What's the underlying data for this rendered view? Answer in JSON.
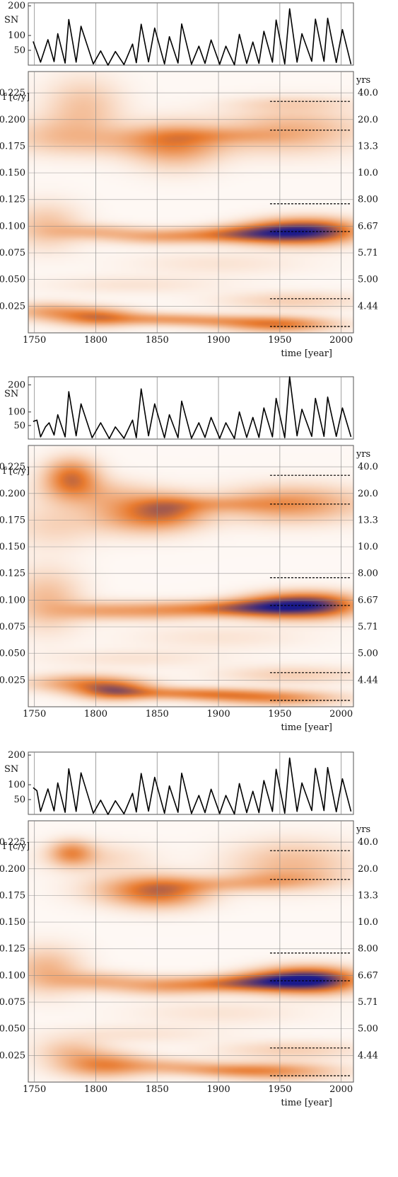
{
  "colors": {
    "low": "#ffffff",
    "mid": "#e87a2e",
    "high": "#1a1a8c",
    "line": "#000000",
    "grid": "#888888"
  },
  "labels": {
    "sn_axis": "SN",
    "freq_axis": "f [c/y]",
    "period_unit": "yrs",
    "time_axis": "time [year]"
  },
  "chart_data": [
    {
      "type": "heatmap",
      "panel": 1,
      "x_ticks": [
        1750,
        1800,
        1850,
        1900,
        1950,
        2000
      ],
      "xlim": [
        1745,
        2010
      ],
      "sn_ticks": [
        50,
        100,
        200
      ],
      "sn_lim": [
        0,
        210
      ],
      "sn_series": [
        [
          1749,
          80
        ],
        [
          1752,
          45
        ],
        [
          1755,
          10
        ],
        [
          1761,
          86
        ],
        [
          1766,
          12
        ],
        [
          1769,
          106
        ],
        [
          1775,
          7
        ],
        [
          1778,
          154
        ],
        [
          1784,
          10
        ],
        [
          1788,
          131
        ],
        [
          1798,
          4
        ],
        [
          1804,
          48
        ],
        [
          1810,
          0
        ],
        [
          1816,
          46
        ],
        [
          1823,
          2
        ],
        [
          1830,
          71
        ],
        [
          1833,
          8
        ],
        [
          1837,
          138
        ],
        [
          1843,
          11
        ],
        [
          1848,
          125
        ],
        [
          1856,
          4
        ],
        [
          1860,
          96
        ],
        [
          1867,
          7
        ],
        [
          1870,
          139
        ],
        [
          1878,
          3
        ],
        [
          1884,
          64
        ],
        [
          1889,
          6
        ],
        [
          1894,
          85
        ],
        [
          1901,
          3
        ],
        [
          1906,
          64
        ],
        [
          1913,
          1
        ],
        [
          1917,
          104
        ],
        [
          1923,
          6
        ],
        [
          1928,
          78
        ],
        [
          1933,
          6
        ],
        [
          1937,
          114
        ],
        [
          1944,
          10
        ],
        [
          1947,
          152
        ],
        [
          1954,
          4
        ],
        [
          1958,
          190
        ],
        [
          1964,
          10
        ],
        [
          1968,
          106
        ],
        [
          1976,
          13
        ],
        [
          1979,
          155
        ],
        [
          1986,
          13
        ],
        [
          1989,
          158
        ],
        [
          1996,
          9
        ],
        [
          2001,
          120
        ],
        [
          2008,
          3
        ]
      ],
      "f_ticks": [
        0.025,
        0.05,
        0.075,
        0.1,
        0.125,
        0.15,
        0.175,
        0.2,
        0.225
      ],
      "f_lim": [
        0,
        0.245
      ],
      "period_ticks": [
        "4.44",
        "5.00",
        "5.71",
        "6.67",
        "8.00",
        "10.0",
        "13.3",
        "20.0",
        "40.0"
      ],
      "dashed_f": [
        0.217,
        0.19,
        0.121,
        0.095,
        0.032,
        0.006
      ],
      "blobs": [
        [
          1790,
          0.21,
          22,
          0.02,
          0.4
        ],
        [
          1760,
          0.185,
          25,
          0.012,
          0.25
        ],
        [
          1840,
          0.18,
          50,
          0.01,
          0.4
        ],
        [
          1865,
          0.175,
          25,
          0.015,
          0.55
        ],
        [
          1900,
          0.185,
          40,
          0.005,
          0.3
        ],
        [
          1960,
          0.19,
          40,
          0.015,
          0.5
        ],
        [
          1960,
          0.215,
          35,
          0.005,
          0.2
        ],
        [
          1760,
          0.1,
          20,
          0.015,
          0.4
        ],
        [
          1800,
          0.095,
          25,
          0.005,
          0.4
        ],
        [
          1850,
          0.09,
          30,
          0.005,
          0.5
        ],
        [
          1900,
          0.092,
          30,
          0.005,
          0.55
        ],
        [
          1930,
          0.093,
          25,
          0.006,
          0.7
        ],
        [
          1960,
          0.095,
          25,
          0.008,
          1.35
        ],
        [
          1990,
          0.095,
          20,
          0.008,
          0.8
        ],
        [
          1760,
          0.02,
          22,
          0.006,
          0.55
        ],
        [
          1800,
          0.015,
          22,
          0.006,
          0.9
        ],
        [
          1850,
          0.013,
          30,
          0.004,
          0.55
        ],
        [
          1900,
          0.011,
          30,
          0.004,
          0.45
        ],
        [
          1950,
          0.008,
          30,
          0.005,
          0.9
        ],
        [
          1960,
          0.03,
          40,
          0.006,
          0.3
        ],
        [
          1830,
          0.045,
          50,
          0.006,
          0.15
        ],
        [
          1900,
          0.065,
          50,
          0.008,
          0.15
        ]
      ]
    },
    {
      "type": "heatmap",
      "panel": 2,
      "x_ticks": [
        1750,
        1800,
        1850,
        1900,
        1950,
        2000
      ],
      "xlim": [
        1745,
        2010
      ],
      "sn_ticks": [
        50,
        100,
        200
      ],
      "sn_lim": [
        0,
        230
      ],
      "sn_series": [
        [
          1749,
          65
        ],
        [
          1752,
          70
        ],
        [
          1755,
          8
        ],
        [
          1759,
          45
        ],
        [
          1762,
          60
        ],
        [
          1766,
          15
        ],
        [
          1769,
          90
        ],
        [
          1775,
          8
        ],
        [
          1778,
          175
        ],
        [
          1784,
          12
        ],
        [
          1788,
          130
        ],
        [
          1797,
          5
        ],
        [
          1804,
          60
        ],
        [
          1811,
          2
        ],
        [
          1816,
          45
        ],
        [
          1823,
          3
        ],
        [
          1830,
          70
        ],
        [
          1833,
          5
        ],
        [
          1837,
          185
        ],
        [
          1843,
          12
        ],
        [
          1848,
          130
        ],
        [
          1856,
          5
        ],
        [
          1860,
          90
        ],
        [
          1867,
          5
        ],
        [
          1870,
          140
        ],
        [
          1878,
          3
        ],
        [
          1884,
          60
        ],
        [
          1889,
          6
        ],
        [
          1894,
          80
        ],
        [
          1901,
          3
        ],
        [
          1906,
          60
        ],
        [
          1913,
          2
        ],
        [
          1917,
          100
        ],
        [
          1923,
          6
        ],
        [
          1928,
          80
        ],
        [
          1933,
          6
        ],
        [
          1937,
          115
        ],
        [
          1944,
          8
        ],
        [
          1947,
          150
        ],
        [
          1954,
          5
        ],
        [
          1958,
          230
        ],
        [
          1964,
          12
        ],
        [
          1968,
          110
        ],
        [
          1976,
          10
        ],
        [
          1979,
          150
        ],
        [
          1986,
          10
        ],
        [
          1989,
          155
        ],
        [
          1996,
          10
        ],
        [
          2001,
          115
        ],
        [
          2008,
          8
        ]
      ],
      "f_ticks": [
        0.025,
        0.05,
        0.075,
        0.1,
        0.125,
        0.15,
        0.175,
        0.2,
        0.225
      ],
      "f_lim": [
        0,
        0.245
      ],
      "period_ticks": [
        "4.44",
        "5.00",
        "5.71",
        "6.67",
        "8.00",
        "10.0",
        "13.3",
        "20.0",
        "40.0"
      ],
      "dashed_f": [
        0.217,
        0.19,
        0.121,
        0.095,
        0.032,
        0.006
      ],
      "blobs": [
        [
          1780,
          0.215,
          15,
          0.012,
          1.0
        ],
        [
          1800,
          0.2,
          30,
          0.01,
          0.35
        ],
        [
          1840,
          0.18,
          30,
          0.012,
          0.8
        ],
        [
          1860,
          0.185,
          20,
          0.01,
          0.5
        ],
        [
          1900,
          0.19,
          40,
          0.005,
          0.35
        ],
        [
          1960,
          0.19,
          40,
          0.012,
          0.7
        ],
        [
          1765,
          0.17,
          25,
          0.015,
          0.25
        ],
        [
          1760,
          0.1,
          20,
          0.02,
          0.45
        ],
        [
          1800,
          0.09,
          25,
          0.006,
          0.45
        ],
        [
          1850,
          0.09,
          30,
          0.006,
          0.55
        ],
        [
          1900,
          0.092,
          30,
          0.005,
          0.6
        ],
        [
          1930,
          0.093,
          25,
          0.006,
          0.7
        ],
        [
          1960,
          0.095,
          25,
          0.008,
          1.4
        ],
        [
          1990,
          0.095,
          20,
          0.008,
          0.8
        ],
        [
          1790,
          0.022,
          30,
          0.006,
          0.7
        ],
        [
          1815,
          0.015,
          20,
          0.006,
          0.95
        ],
        [
          1860,
          0.013,
          35,
          0.004,
          0.6
        ],
        [
          1905,
          0.011,
          30,
          0.004,
          0.5
        ],
        [
          1950,
          0.008,
          35,
          0.005,
          0.7
        ],
        [
          1960,
          0.03,
          40,
          0.006,
          0.3
        ],
        [
          1830,
          0.045,
          50,
          0.006,
          0.15
        ],
        [
          1900,
          0.065,
          50,
          0.008,
          0.15
        ]
      ]
    },
    {
      "type": "heatmap",
      "panel": 3,
      "x_ticks": [
        1750,
        1800,
        1850,
        1900,
        1950,
        2000
      ],
      "xlim": [
        1745,
        2010
      ],
      "sn_ticks": [
        50,
        100,
        200
      ],
      "sn_lim": [
        0,
        210
      ],
      "sn_series": [
        [
          1749,
          90
        ],
        [
          1752,
          80
        ],
        [
          1755,
          10
        ],
        [
          1761,
          86
        ],
        [
          1766,
          12
        ],
        [
          1769,
          106
        ],
        [
          1775,
          7
        ],
        [
          1778,
          154
        ],
        [
          1784,
          10
        ],
        [
          1788,
          140
        ],
        [
          1798,
          4
        ],
        [
          1804,
          48
        ],
        [
          1810,
          0
        ],
        [
          1816,
          46
        ],
        [
          1823,
          2
        ],
        [
          1830,
          71
        ],
        [
          1833,
          8
        ],
        [
          1837,
          138
        ],
        [
          1843,
          11
        ],
        [
          1848,
          125
        ],
        [
          1856,
          4
        ],
        [
          1860,
          96
        ],
        [
          1867,
          7
        ],
        [
          1870,
          139
        ],
        [
          1878,
          3
        ],
        [
          1884,
          64
        ],
        [
          1889,
          6
        ],
        [
          1894,
          85
        ],
        [
          1901,
          3
        ],
        [
          1906,
          64
        ],
        [
          1913,
          1
        ],
        [
          1917,
          104
        ],
        [
          1923,
          6
        ],
        [
          1928,
          78
        ],
        [
          1933,
          6
        ],
        [
          1937,
          114
        ],
        [
          1944,
          10
        ],
        [
          1947,
          152
        ],
        [
          1954,
          4
        ],
        [
          1958,
          190
        ],
        [
          1964,
          10
        ],
        [
          1968,
          106
        ],
        [
          1976,
          13
        ],
        [
          1979,
          155
        ],
        [
          1986,
          13
        ],
        [
          1989,
          158
        ],
        [
          1996,
          9
        ],
        [
          2001,
          120
        ],
        [
          2008,
          10
        ]
      ],
      "f_ticks": [
        0.025,
        0.05,
        0.075,
        0.1,
        0.125,
        0.15,
        0.175,
        0.2,
        0.225
      ],
      "f_lim": [
        0,
        0.245
      ],
      "period_ticks": [
        "4.44",
        "5.00",
        "5.71",
        "6.67",
        "8.00",
        "10.0",
        "13.3",
        "20.0",
        "40.0"
      ],
      "dashed_f": [
        0.217,
        0.19,
        0.121,
        0.095,
        0.032,
        0.006
      ],
      "blobs": [
        [
          1780,
          0.215,
          12,
          0.008,
          0.7
        ],
        [
          1800,
          0.21,
          30,
          0.01,
          0.25
        ],
        [
          1855,
          0.178,
          25,
          0.01,
          0.8
        ],
        [
          1830,
          0.18,
          30,
          0.01,
          0.4
        ],
        [
          1900,
          0.185,
          40,
          0.005,
          0.35
        ],
        [
          1960,
          0.205,
          35,
          0.015,
          0.45
        ],
        [
          1950,
          0.19,
          30,
          0.006,
          0.35
        ],
        [
          1760,
          0.105,
          20,
          0.015,
          0.5
        ],
        [
          1800,
          0.095,
          25,
          0.006,
          0.45
        ],
        [
          1855,
          0.09,
          30,
          0.006,
          0.55
        ],
        [
          1905,
          0.092,
          30,
          0.005,
          0.6
        ],
        [
          1935,
          0.094,
          25,
          0.006,
          0.75
        ],
        [
          1965,
          0.096,
          25,
          0.008,
          1.4
        ],
        [
          1990,
          0.095,
          20,
          0.008,
          0.8
        ],
        [
          1805,
          0.016,
          25,
          0.008,
          0.8
        ],
        [
          1780,
          0.03,
          20,
          0.008,
          0.35
        ],
        [
          1860,
          0.015,
          30,
          0.005,
          0.4
        ],
        [
          1910,
          0.011,
          30,
          0.004,
          0.45
        ],
        [
          1950,
          0.01,
          35,
          0.006,
          0.6
        ],
        [
          1960,
          0.03,
          40,
          0.006,
          0.3
        ],
        [
          1830,
          0.045,
          50,
          0.006,
          0.15
        ],
        [
          1900,
          0.065,
          50,
          0.008,
          0.15
        ]
      ]
    }
  ]
}
